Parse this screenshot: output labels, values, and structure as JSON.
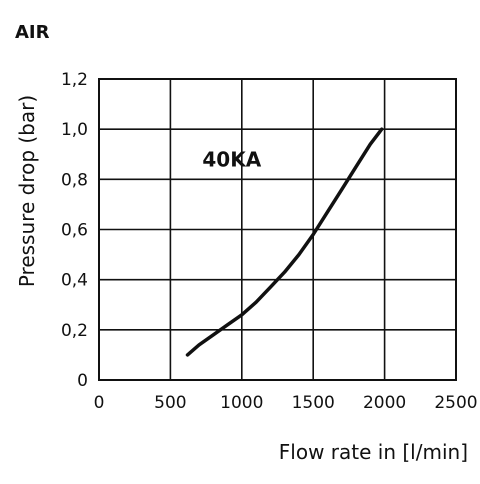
{
  "chart_data": {
    "type": "line",
    "title": "AIR",
    "xlabel": "Flow rate in [l/min]",
    "ylabel": "Pressure drop (bar)",
    "xlim": [
      0,
      2500
    ],
    "ylim": [
      0,
      1.2
    ],
    "xticks": [
      0,
      500,
      1000,
      1500,
      2000,
      2500
    ],
    "xtick_labels": [
      "0",
      "500",
      "1000",
      "1500",
      "2000",
      "2500"
    ],
    "yticks": [
      0,
      0.2,
      0.4,
      0.6,
      0.8,
      1.0,
      1.2
    ],
    "ytick_labels": [
      "0",
      "0,2",
      "0,4",
      "0,6",
      "0,8",
      "1,0",
      "1,2"
    ],
    "grid": true,
    "series": [
      {
        "name": "40KA",
        "color": "#111111",
        "x": [
          620,
          700,
          800,
          900,
          1000,
          1100,
          1200,
          1300,
          1400,
          1500,
          1600,
          1700,
          1800,
          1900,
          1980
        ],
        "y": [
          0.1,
          0.14,
          0.18,
          0.22,
          0.26,
          0.31,
          0.37,
          0.43,
          0.5,
          0.58,
          0.67,
          0.76,
          0.85,
          0.94,
          1.0
        ]
      }
    ],
    "annotations": [
      {
        "text": "40KA",
        "x": 930,
        "y": 0.88
      }
    ]
  }
}
